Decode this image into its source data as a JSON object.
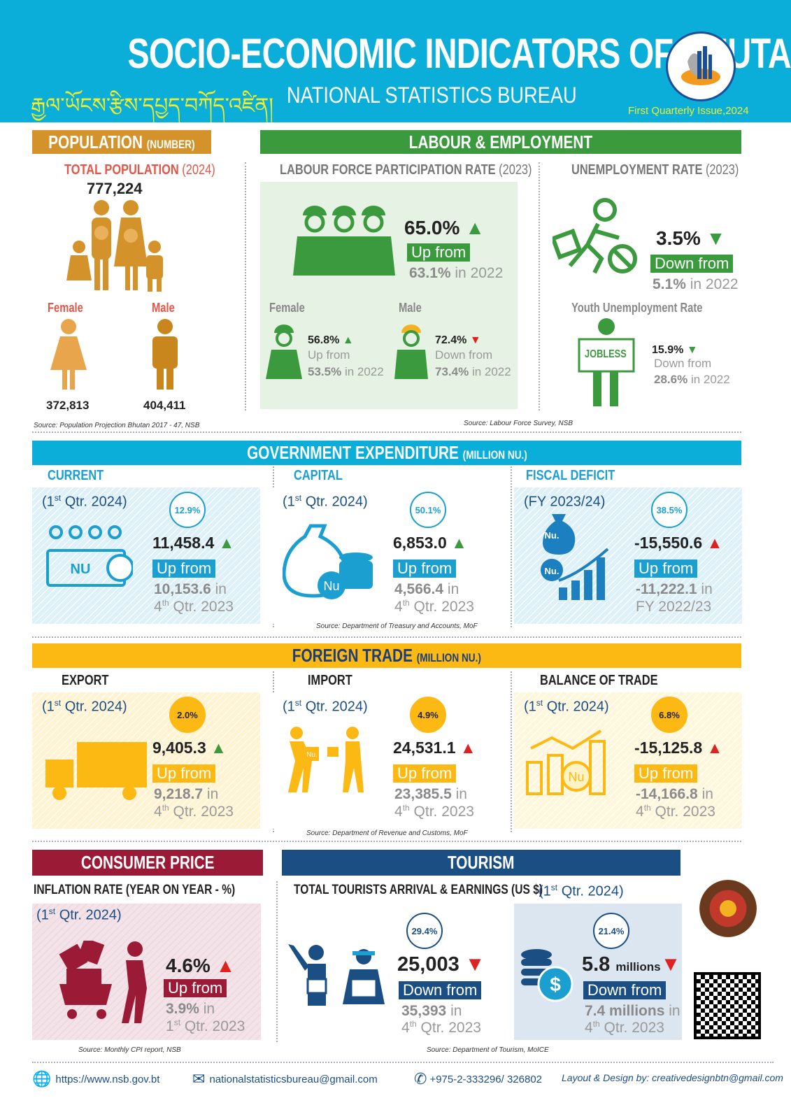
{
  "header": {
    "title": "SOCIO-ECONOMIC INDICATORS OF BHUTAN",
    "dzongkha": "རྒྱལ་ཡོངས་རྩིས་དཔྱད་བཀོད་འཛིན།",
    "org": "NATIONAL STATISTICS BUREAU",
    "issue": "First Quarterly Issue,2024",
    "logo_text": "NATIONAL STATISTICS BUREAU"
  },
  "population": {
    "header": "POPULATION",
    "header_unit": "(NUMBER)",
    "total_label": "TOTAL POPULATION",
    "total_year": "(2024)",
    "total": "777,224",
    "female_label": "Female",
    "male_label": "Male",
    "female": "372,813",
    "male": "404,411",
    "source": "Source: Population Projection Bhutan 2017 - 47, NSB"
  },
  "labour": {
    "header": "LABOUR & EMPLOYMENT",
    "lfpr": {
      "title": "LABOUR FORCE PARTICIPATION RATE",
      "year": "(2023)",
      "value": "65.0%",
      "tag": "Up from",
      "prev": "63.1%",
      "prev_suffix": "in 2022",
      "female_label": "Female",
      "female_value": "56.8%",
      "female_tag": "Up from",
      "female_prev": "53.5%",
      "female_prev_suffix": "in 2022",
      "male_label": "Male",
      "male_value": "72.4%",
      "male_tag": "Down from",
      "male_prev": "73.4%",
      "male_prev_suffix": "in 2022"
    },
    "unemp": {
      "title": "UNEMPLOYMENT RATE",
      "year": "(2023)",
      "value": "3.5%",
      "tag": "Down from",
      "prev": "5.1%",
      "prev_suffix": "in 2022",
      "youth_title": "Youth Unemployment Rate",
      "youth_sign": "JOBLESS",
      "youth_value": "15.9%",
      "youth_tag": "Down from",
      "youth_prev": "28.6%",
      "youth_prev_suffix": "in 2022"
    },
    "source": "Source: Labour Force Survey, NSB"
  },
  "gov": {
    "header": "GOVERNMENT EXPENDITURE",
    "unit": "(MILLION NU.)",
    "source": "Source: Department of Treasury and Accounts, MoF",
    "items": [
      {
        "label": "CURRENT",
        "period": "(1",
        "period_sup": "st",
        "period_rest": " Qtr. 2024)",
        "pct": "12.9%",
        "value": "11,458.4",
        "dir": "up",
        "tag": "Up from",
        "prev": "10,153.6",
        "prev_suffix": " in",
        "prev_period": "4",
        "prev_sup": "th",
        "prev_rest": " Qtr. 2023",
        "icon_text": "NU"
      },
      {
        "label": "CAPITAL",
        "period": "(1",
        "period_sup": "st",
        "period_rest": " Qtr. 2024)",
        "pct": "50.1%",
        "value": "6,853.0",
        "dir": "up",
        "tag": "Up from",
        "prev": "4,566.4",
        "prev_suffix": " in",
        "prev_period": "4",
        "prev_sup": "th",
        "prev_rest": " Qtr. 2023",
        "icon_text": "Nu"
      },
      {
        "label": "FISCAL DEFICIT",
        "period": "(FY 2023/24)",
        "period_sup": "",
        "period_rest": "",
        "pct": "38.5%",
        "value": "-15,550.6",
        "dir": "up-red",
        "tag": "Up from",
        "prev": "-11,222.1",
        "prev_suffix": " in",
        "prev_period": "FY 2022/23",
        "prev_sup": "",
        "prev_rest": "",
        "icon_text": "Nu."
      }
    ]
  },
  "trade": {
    "header": "FOREIGN TRADE",
    "unit": "(MILLION NU.)",
    "source": "Source: Department of Revenue and Customs, MoF",
    "items": [
      {
        "label": "EXPORT",
        "period": "(1",
        "period_sup": "st",
        "period_rest": " Qtr. 2024)",
        "pct": "2.0%",
        "value": "9,405.3",
        "dir": "up",
        "tag": "Up from",
        "prev": "9,218.7",
        "prev_suffix": " in",
        "prev_period": "4",
        "prev_sup": "th",
        "prev_rest": " Qtr. 2023"
      },
      {
        "label": "IMPORT",
        "period": "(1",
        "period_sup": "st",
        "period_rest": " Qtr. 2024)",
        "pct": "4.9%",
        "value": "24,531.1",
        "dir": "up-red",
        "tag": "Up from",
        "prev": "23,385.5",
        "prev_suffix": " in",
        "prev_period": "4",
        "prev_sup": "th",
        "prev_rest": " Qtr. 2023",
        "icon_text": "Nu."
      },
      {
        "label": "BALANCE OF TRADE",
        "period": "(1",
        "period_sup": "st",
        "period_rest": " Qtr. 2024)",
        "pct": "6.8%",
        "value": "-15,125.8",
        "dir": "up-red",
        "tag": "Up from",
        "prev": "-14,166.8",
        "prev_suffix": " in",
        "prev_period": "4",
        "prev_sup": "th",
        "prev_rest": " Qtr. 2023",
        "icon_text": "Nu"
      }
    ]
  },
  "cpi": {
    "header": "CONSUMER PRICE",
    "subtitle": "INFLATION RATE (YEAR ON YEAR - %)",
    "period": "(1",
    "period_sup": "st",
    "period_rest": " Qtr. 2024)",
    "value": "4.6%",
    "tag": "Up from",
    "prev": "3.9%",
    "prev_suffix": " in",
    "prev_period": "1",
    "prev_sup": "st",
    "prev_rest": " Qtr. 2023",
    "source": "Source: Monthly CPI report, NSB"
  },
  "tourism": {
    "header": "TOURISM",
    "subtitle": "TOTAL TOURISTS ARRIVAL & EARNINGS (US $)",
    "period": "(1",
    "period_sup": "st",
    "period_rest": " Qtr. 2024)",
    "arrivals": {
      "pct": "29.4%",
      "value": "25,003",
      "tag": "Down from",
      "prev": "35,393",
      "prev_suffix": " in",
      "prev_period": "4",
      "prev_sup": "th",
      "prev_rest": " Qtr. 2023"
    },
    "earnings": {
      "pct": "21.4%",
      "value": "5.8",
      "unit": "millions",
      "tag": "Down from",
      "prev": "7.4 millions",
      "prev_suffix": " in",
      "prev_period": "4",
      "prev_sup": "th",
      "prev_rest": " Qtr. 2023"
    },
    "source": "Source: Department of Tourism, MoICE"
  },
  "footer": {
    "website": "https://www.nsb.gov.bt",
    "email": "nationalstatisticsbureau@gmail.com",
    "phone": "+975-2-333296/ 326802",
    "credit": "Layout & Design by: creativedesignbtn@gmail.com"
  },
  "colors": {
    "header_blue": "#0aaed8",
    "population": "#d4922a",
    "labour": "#3c9a3e",
    "gov": "#0aaed8",
    "trade": "#fdb913",
    "cpi": "#9b1b37",
    "tourism": "#1b4f84",
    "up": "#3c9a3e",
    "down": "#d22222"
  }
}
